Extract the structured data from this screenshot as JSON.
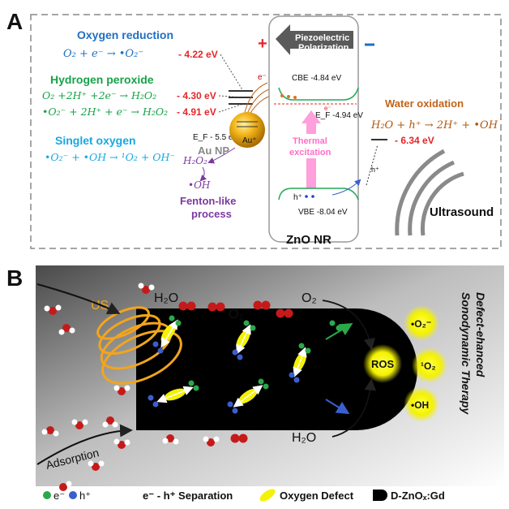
{
  "panel_a": {
    "letter": "A",
    "reactions": {
      "oxygen_reduction": {
        "title": "Oxygen reduction",
        "equation": "O₂ + e⁻ → •O₂⁻",
        "energy": "- 4.22 eV"
      },
      "hydrogen_peroxide": {
        "title": "Hydrogen peroxide",
        "eq1": "O₂ +2H⁺ +2e⁻ → H₂O₂",
        "energy1": "- 4.30 eV",
        "eq2": "•O₂⁻ + 2H⁺ + e⁻ → H₂O₂",
        "energy2": "- 4.91 eV"
      },
      "singlet_oxygen": {
        "title": "Singlet oxygen",
        "equation": "•O₂⁻ + •OH → ¹O₂ + OH⁻"
      },
      "water_oxidation": {
        "title": "Water oxidation",
        "equation": "H₂O + h⁺ → 2H⁺ + •OH",
        "energy": "- 6.34 eV"
      }
    },
    "piezo_label_line1": "Piezoelectric",
    "piezo_label_line2": "Polarization",
    "plus": "+",
    "cbe": "CBE -4.84 eV",
    "ef_zno": "E_F  -4.94 eV",
    "ef_au": "E_F  - 5.5 eV",
    "au_np": "Au NP",
    "au_plus": "Au⁺",
    "thermal_line1": "Thermal",
    "thermal_line2": "excitation",
    "h2o2": "H₂O₂",
    "oh": "•OH",
    "fenton_line1": "Fenton-like",
    "fenton_line2": "process",
    "vbe": "VBE -8.04 eV",
    "e_minus": "e⁻",
    "h_plus": "h⁺",
    "zno_nr": "ZnO NR",
    "ultrasound": "Ultrasound",
    "colors": {
      "blue": "#1f6fc2",
      "green": "#18a24a",
      "red": "#e3262a",
      "cyan": "#18a8e0",
      "orange": "#c0641a",
      "purple": "#7a3aa0",
      "pink": "#ff8fd6"
    }
  },
  "panel_b": {
    "letter": "B",
    "us": "US",
    "h2o_top": "H₂O",
    "o2_top": "O₂",
    "o2_right": "O₂",
    "h2o_bottom": "H₂O",
    "ros": "ROS",
    "superoxide": "•O₂⁻",
    "singlet": "¹O₂",
    "hydroxyl": "•OH",
    "therapy_line1": "Defect-ehanced",
    "therapy_line2": "Sonodynamic Therapy",
    "adsorption": "Adsorption",
    "legend": {
      "electron": "e⁻",
      "hole": "h⁺",
      "separation": "e⁻ - h⁺ Separation",
      "oxygen_defect": "Oxygen Defect",
      "material": "D-ZnOₓ:Gd"
    }
  }
}
